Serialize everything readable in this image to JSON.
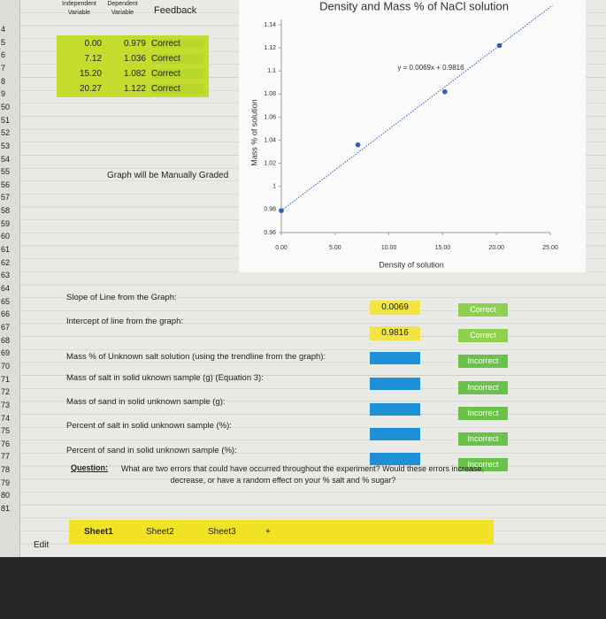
{
  "row_numbers": [
    "4",
    "5",
    "6",
    "7",
    "8",
    "9",
    "50",
    "51",
    "52",
    "53",
    "54",
    "55",
    "56",
    "57",
    "58",
    "59",
    "60",
    "61",
    "62",
    "63",
    "64",
    "65",
    "66",
    "67",
    "68",
    "69",
    "70",
    "71",
    "72",
    "73",
    "74",
    "75",
    "76",
    "77",
    "78",
    "79",
    "80",
    "81"
  ],
  "header": {
    "independent": "Independent Variable",
    "dependent": "Dependent Variable",
    "feedback": "Feedback"
  },
  "table": {
    "rows": [
      [
        "0.00",
        "0.979",
        "Correct"
      ],
      [
        "7.12",
        "1.036",
        "Correct"
      ],
      [
        "15.20",
        "1.082",
        "Correct"
      ],
      [
        "20.27",
        "1.122",
        "Correct"
      ]
    ]
  },
  "graph_note": "Graph will be Manually Graded",
  "chart_data": {
    "type": "scatter",
    "title": "Density and Mass % of NaCl solution",
    "x_label": "Density of solution",
    "y_label": "Mass % of solution",
    "trendline_label": "y = 0.0069x + 0.9816",
    "x": [
      0,
      7.12,
      15.2,
      20.27
    ],
    "values": [
      0.979,
      1.036,
      1.082,
      1.122
    ],
    "color": "#2f5fb3",
    "xlim": [
      0,
      25
    ],
    "xticks": [
      {
        "value": 0,
        "label": "0.00"
      },
      {
        "value": 5,
        "label": "5.00"
      },
      {
        "value": 10,
        "label": "10.00"
      },
      {
        "value": 15,
        "label": "15.00"
      },
      {
        "value": 20,
        "label": "20.00"
      },
      {
        "value": 25,
        "label": "25.00"
      }
    ],
    "ylim": [
      0.96,
      1.14
    ],
    "yticks": [
      0.96,
      0.98,
      1,
      1.02,
      1.04,
      1.06,
      1.08,
      1.1,
      1.12,
      1.14
    ],
    "grid": false
  },
  "answers": [
    {
      "label": "Slope of Line from the Graph:",
      "value": "0.0069",
      "feedback": "Correct"
    },
    {
      "label": "Intercept of line from the graph:",
      "value": "0.9816",
      "feedback": "Correct"
    },
    {
      "label": "Mass % of Unknown salt solution (using the trendline from the graph):",
      "value": "",
      "feedback": "Incorrect"
    },
    {
      "label": "Mass of salt in solid uknown sample (g) (Equation 3):",
      "value": "",
      "feedback": "Incorrect"
    },
    {
      "label": "Mass of sand in solid unknown sample (g):",
      "value": "",
      "feedback": "Incorrect"
    },
    {
      "label": "Percent of salt in solid unknown sample (%):",
      "value": "",
      "feedback": "Incorrect"
    },
    {
      "label": "Percent of sand in solid unknown sample (%):",
      "value": "",
      "feedback": "Incorrect"
    }
  ],
  "question": {
    "lead": "Question:",
    "text": "What are two errors that could have occurred throughout the experiment? Would these errors increase, decrease, or have a random effect on your % salt and % sugar?"
  },
  "tabs": [
    "Sheet1",
    "Sheet2",
    "Sheet3",
    "+"
  ],
  "status": "Edit"
}
